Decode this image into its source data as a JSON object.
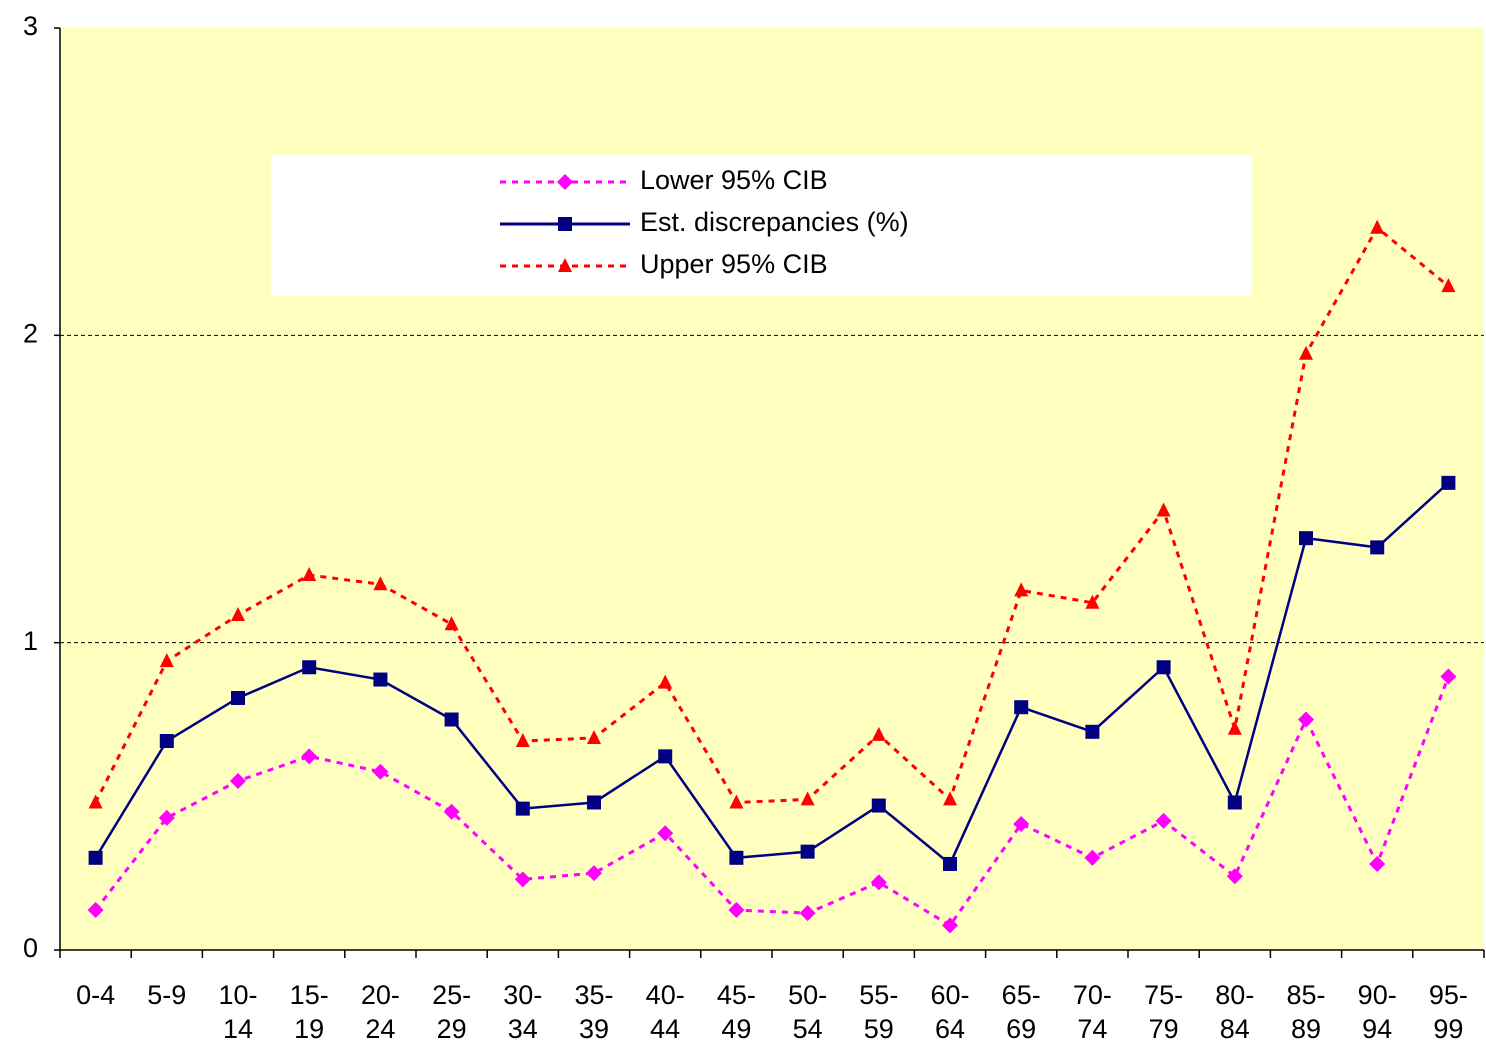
{
  "chart_data": {
    "type": "line",
    "categories": [
      "0-4",
      "5-9",
      "10-14",
      "15-19",
      "20-24",
      "25-29",
      "30-34",
      "35-39",
      "40-44",
      "45-49",
      "50-54",
      "55-59",
      "60-64",
      "65-69",
      "70-74",
      "75-79",
      "80-84",
      "85-89",
      "90-94",
      "95-99"
    ],
    "series": [
      {
        "name": "Lower 95% CIB",
        "color": "#ff00ff",
        "line_style": "dotted",
        "marker": "diamond",
        "values": [
          0.13,
          0.43,
          0.55,
          0.63,
          0.58,
          0.45,
          0.23,
          0.25,
          0.38,
          0.13,
          0.12,
          0.22,
          0.08,
          0.41,
          0.3,
          0.42,
          0.24,
          0.75,
          0.28,
          0.89
        ]
      },
      {
        "name": "Est. discrepancies (%)",
        "color": "#000080",
        "line_style": "solid",
        "marker": "square",
        "values": [
          0.3,
          0.68,
          0.82,
          0.92,
          0.88,
          0.75,
          0.46,
          0.48,
          0.63,
          0.3,
          0.32,
          0.47,
          0.28,
          0.79,
          0.71,
          0.92,
          0.48,
          1.34,
          1.31,
          1.52
        ]
      },
      {
        "name": "Upper 95% CIB",
        "color": "#ff0000",
        "line_style": "dotted",
        "marker": "triangle",
        "values": [
          0.48,
          0.94,
          1.09,
          1.22,
          1.19,
          1.06,
          0.68,
          0.69,
          0.87,
          0.48,
          0.49,
          0.7,
          0.49,
          1.17,
          1.13,
          1.43,
          0.72,
          1.94,
          2.35,
          2.16
        ]
      }
    ],
    "ylim": [
      0,
      3
    ],
    "yticks": [
      0,
      1,
      2,
      3
    ],
    "grid": true,
    "plot_background": "#ffffc0"
  }
}
